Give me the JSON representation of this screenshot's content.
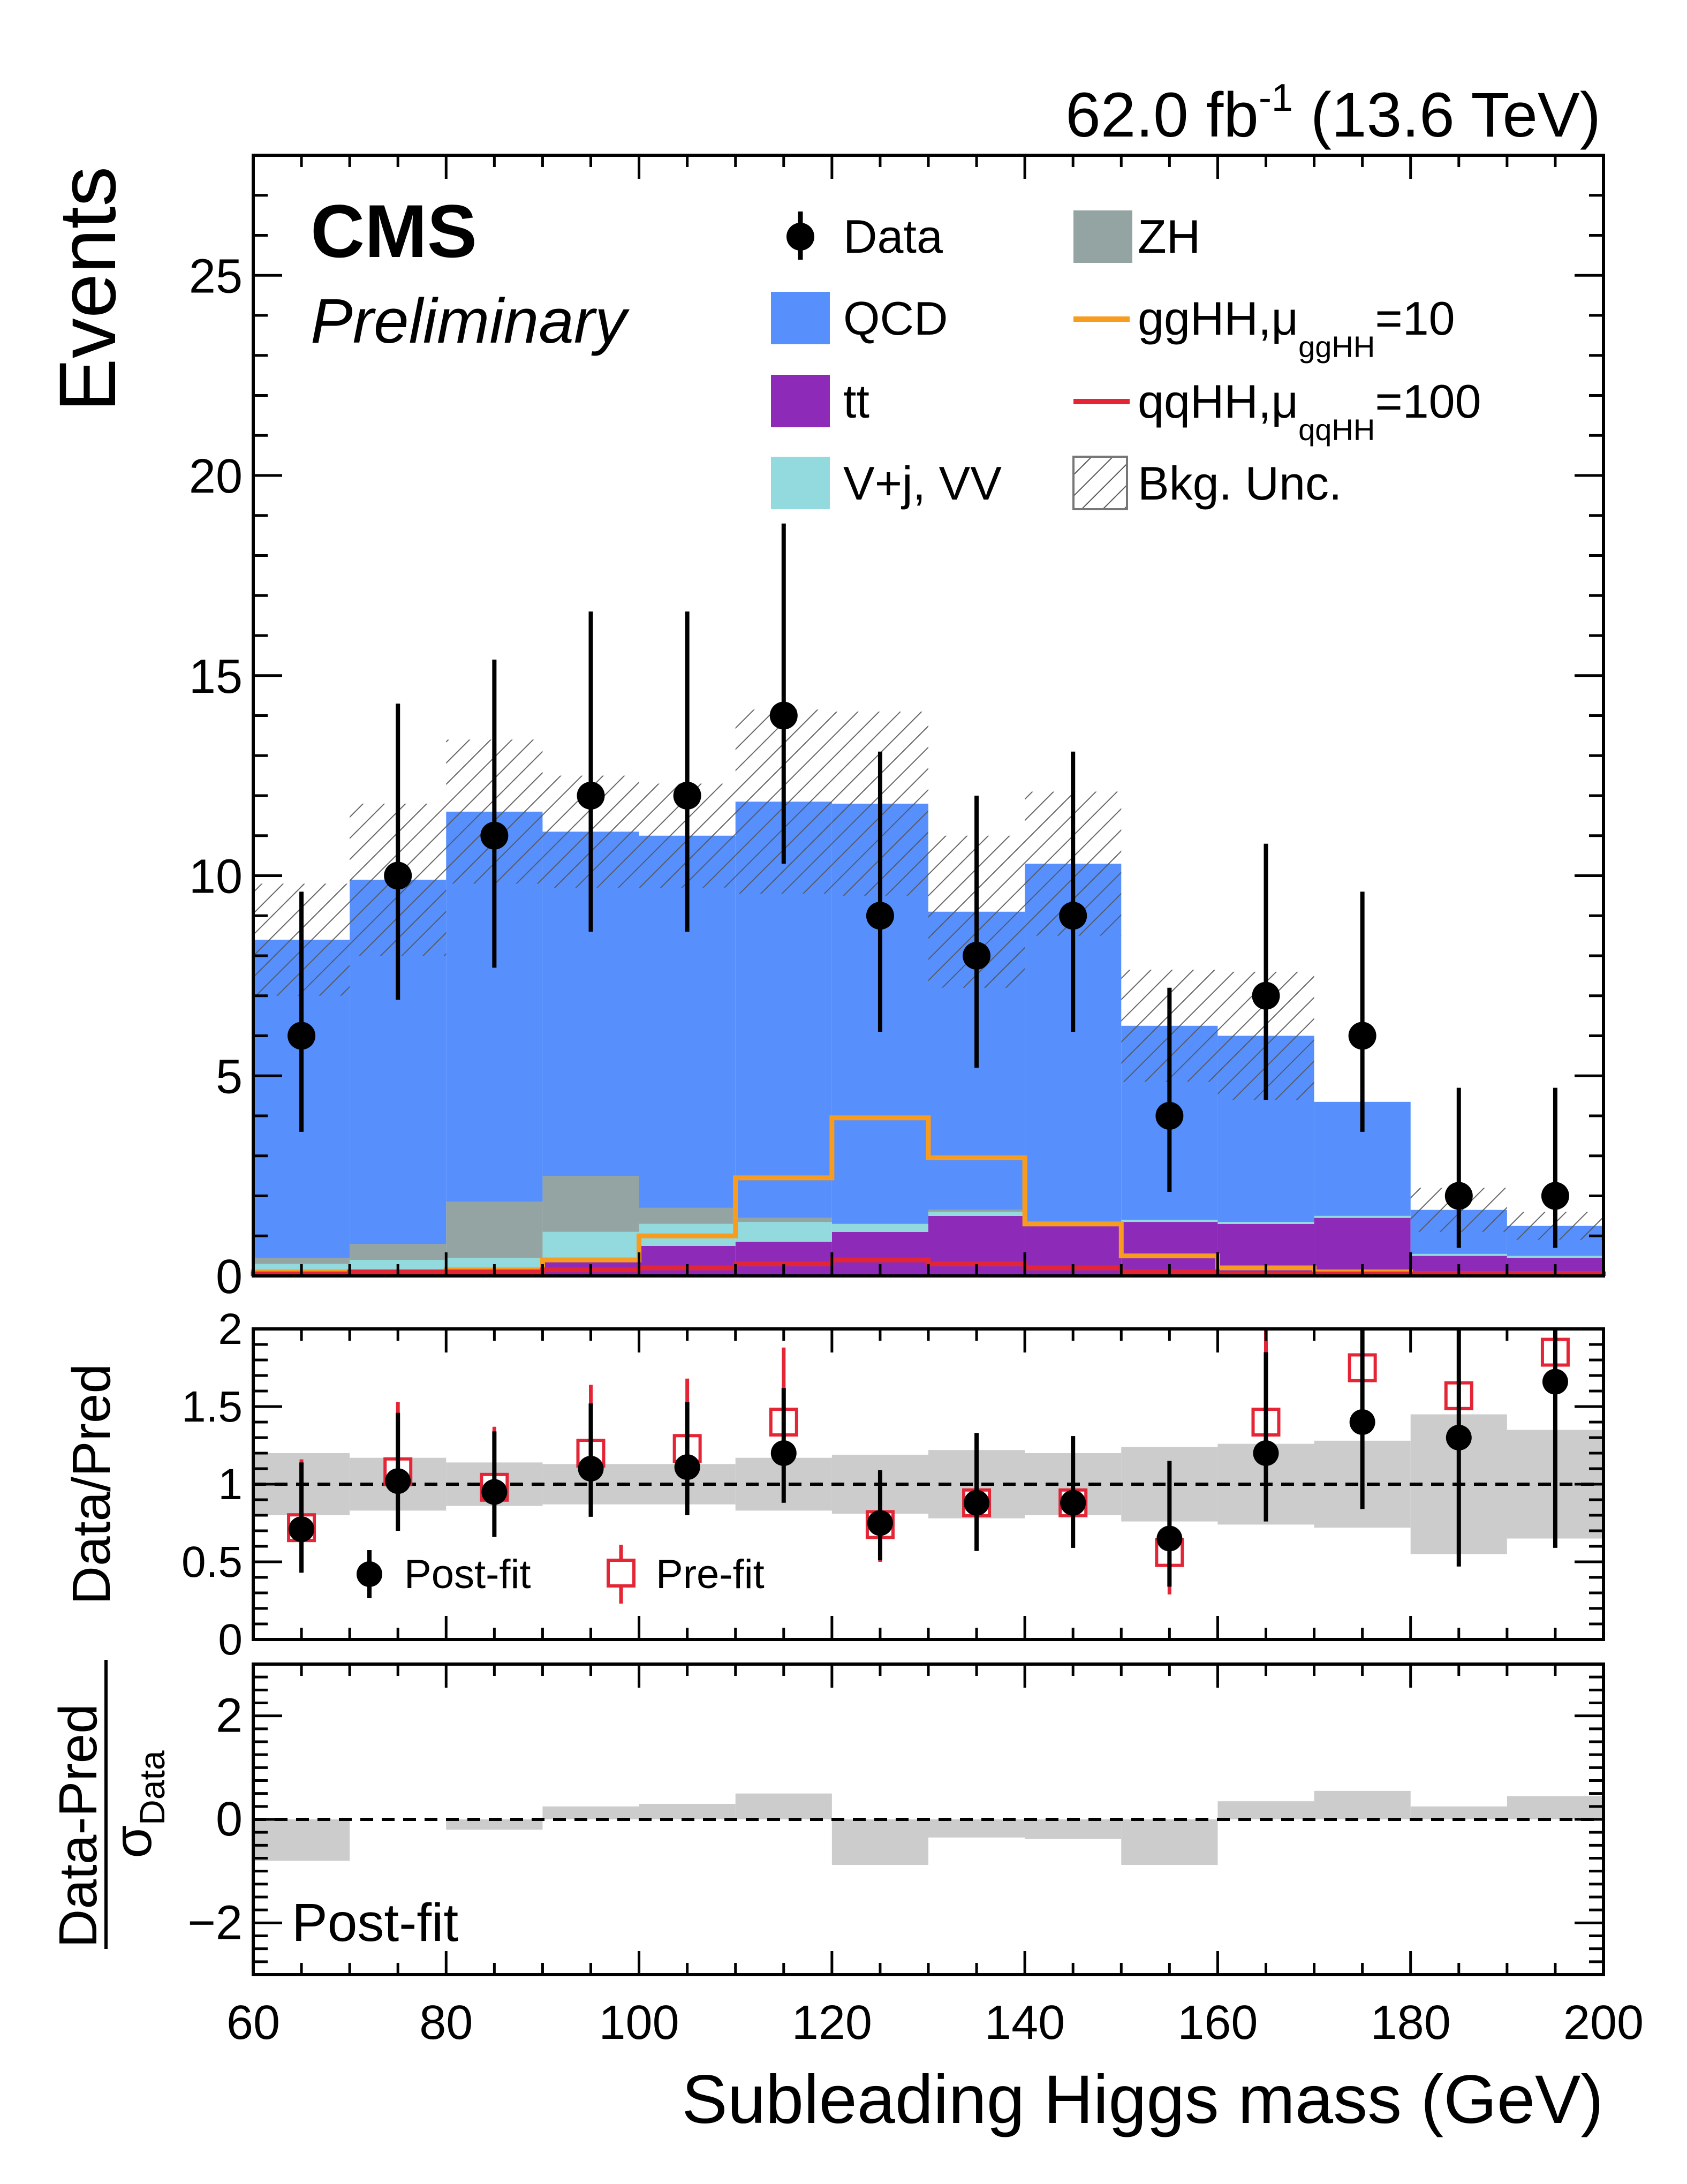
{
  "header": {
    "lumi_text": "62.0 fb",
    "lumi_sup": "-1",
    "energy_text": " (13.6 TeV)",
    "cms_label": "CMS",
    "preliminary_label": "Preliminary"
  },
  "chart_data": [
    {
      "type": "stacked-histogram",
      "title": "",
      "ylabel": "Events",
      "xlabel": "Subleading Higgs mass (GeV)",
      "xlim": [
        60,
        200
      ],
      "ylim": [
        0,
        28
      ],
      "bin_edges": [
        60,
        70,
        80,
        90,
        100,
        110,
        120,
        130,
        140,
        150,
        160,
        170,
        180,
        190,
        200
      ],
      "yticks": [
        0,
        5,
        10,
        15,
        20,
        25
      ],
      "series": [
        {
          "name": "ttbar",
          "legend": "tt",
          "color": "#8d2ab8",
          "values": [
            0.1,
            0.15,
            0.2,
            0.45,
            0.75,
            0.85,
            1.1,
            1.5,
            1.3,
            1.35,
            1.3,
            1.45,
            0.5,
            0.45
          ]
        },
        {
          "name": "V+jets/VV",
          "legend": "V+j, VV",
          "color": "#92dadd",
          "values": [
            0.2,
            0.25,
            0.25,
            0.65,
            0.55,
            0.5,
            0.2,
            0.1,
            0.05,
            0.05,
            0.05,
            0.05,
            0.05,
            0.05
          ]
        },
        {
          "name": "ZH",
          "legend": "ZH",
          "color": "#94a4a2",
          "values": [
            0.15,
            0.4,
            1.4,
            1.4,
            0.4,
            0.1,
            0.0,
            0.05,
            0.0,
            0.0,
            0.0,
            0.0,
            0.0,
            0.0
          ]
        },
        {
          "name": "QCD",
          "legend": "QCD",
          "color": "#5790fc",
          "values": [
            7.95,
            9.1,
            9.75,
            8.6,
            9.3,
            10.4,
            10.5,
            7.45,
            8.95,
            4.85,
            4.65,
            2.85,
            1.1,
            0.75
          ]
        }
      ],
      "signals": [
        {
          "name": "ggHH",
          "legend_main": "ggHH,",
          "legend_mu": "μ",
          "legend_sub": "ggHH",
          "legend_value": "=10",
          "color": "#f89c20",
          "values": [
            0.1,
            0.1,
            0.15,
            0.4,
            1.0,
            2.45,
            3.95,
            2.95,
            1.3,
            0.5,
            0.2,
            0.1,
            0.05,
            0.05
          ]
        },
        {
          "name": "qqHH",
          "legend_main": "qqHH,",
          "legend_mu": "μ",
          "legend_sub": "qqHH",
          "legend_value": "=100",
          "color": "#e42536",
          "values": [
            0.05,
            0.1,
            0.1,
            0.15,
            0.2,
            0.3,
            0.4,
            0.3,
            0.2,
            0.1,
            0.05,
            0.05,
            0.05,
            0.05
          ]
        }
      ],
      "bkg_unc": [
        1.4,
        1.9,
        1.8,
        1.4,
        1.3,
        2.3,
        2.3,
        1.9,
        1.8,
        1.4,
        1.6,
        0.0,
        0.55,
        0.35
      ],
      "data": {
        "legend": "Data",
        "x": [
          65,
          75,
          85,
          95,
          105,
          115,
          125,
          135,
          145,
          155,
          165,
          175,
          185,
          195
        ],
        "y": [
          6,
          10,
          11,
          12,
          12,
          14,
          9,
          8,
          9,
          4,
          7,
          6,
          2,
          2
        ],
        "err_low": [
          2.4,
          3.1,
          3.3,
          3.4,
          3.4,
          3.7,
          2.9,
          2.8,
          2.9,
          1.9,
          2.6,
          2.4,
          1.3,
          1.3
        ],
        "err_high": [
          3.6,
          4.3,
          4.4,
          4.6,
          4.6,
          4.8,
          4.1,
          4.0,
          4.1,
          3.2,
          3.8,
          3.6,
          2.7,
          2.7
        ]
      },
      "legend_unc": "Bkg. Unc."
    },
    {
      "type": "ratio",
      "ylabel": "Data/Pred",
      "ylim": [
        0,
        2
      ],
      "yticks": [
        0,
        0.5,
        1,
        1.5,
        2
      ],
      "ytick_labels": [
        "0",
        "0.5",
        "1",
        "1.5",
        "2"
      ],
      "reference_line": 1,
      "band_low": [
        0.8,
        0.83,
        0.86,
        0.87,
        0.87,
        0.83,
        0.81,
        0.78,
        0.8,
        0.76,
        0.74,
        0.72,
        0.55,
        0.65
      ],
      "band_high": [
        1.2,
        1.17,
        1.14,
        1.13,
        1.13,
        1.17,
        1.19,
        1.22,
        1.2,
        1.24,
        1.26,
        1.28,
        1.45,
        1.35
      ],
      "postfit": {
        "legend": "Post-fit",
        "x": [
          65,
          75,
          85,
          95,
          105,
          115,
          125,
          135,
          145,
          155,
          165,
          175,
          185,
          195
        ],
        "y": [
          0.71,
          1.02,
          0.95,
          1.1,
          1.11,
          1.2,
          0.75,
          0.88,
          0.88,
          0.65,
          1.2,
          1.4,
          1.3,
          1.66
        ],
        "err_low": [
          0.28,
          0.32,
          0.29,
          0.31,
          0.31,
          0.32,
          0.24,
          0.31,
          0.29,
          0.31,
          0.44,
          0.56,
          0.83,
          1.07
        ],
        "err_high": [
          0.43,
          0.44,
          0.39,
          0.42,
          0.42,
          0.42,
          0.34,
          0.45,
          0.43,
          0.5,
          0.65,
          0.86,
          1.55,
          1.55
        ]
      },
      "prefit": {
        "legend": "Pre-fit",
        "x": [
          65,
          75,
          85,
          95,
          105,
          115,
          125,
          135,
          145,
          155,
          165,
          175,
          185,
          195
        ],
        "y": [
          0.72,
          1.08,
          0.98,
          1.2,
          1.23,
          1.4,
          0.74,
          0.88,
          0.88,
          0.56,
          1.4,
          1.75,
          1.57,
          1.85
        ],
        "err_low": [
          0.29,
          0.33,
          0.29,
          0.33,
          0.34,
          0.37,
          0.24,
          0.3,
          0.29,
          0.27,
          0.52,
          0.7,
          0.98,
          1.2
        ],
        "err_high": [
          0.44,
          0.45,
          0.39,
          0.44,
          0.45,
          0.48,
          0.34,
          0.44,
          0.43,
          0.44,
          0.76,
          1.08,
          1.8,
          1.8
        ]
      }
    },
    {
      "type": "pull",
      "ylabel_num": "Data-Pred",
      "ylabel_den": "σ",
      "ylabel_den_sub": "Data",
      "ylim": [
        -3,
        3
      ],
      "yticks": [
        -2,
        0,
        2
      ],
      "ytick_labels": [
        "−2",
        "0",
        "2"
      ],
      "label": "Post-fit",
      "values": [
        -0.8,
        0.0,
        -0.2,
        0.25,
        0.3,
        0.5,
        -0.88,
        -0.35,
        -0.38,
        -0.88,
        0.35,
        0.55,
        0.25,
        0.45
      ]
    }
  ],
  "xaxis": {
    "ticks": [
      60,
      80,
      100,
      120,
      140,
      160,
      180,
      200
    ],
    "tick_labels": [
      "60",
      "80",
      "100",
      "120",
      "140",
      "160",
      "180",
      "200"
    ]
  }
}
